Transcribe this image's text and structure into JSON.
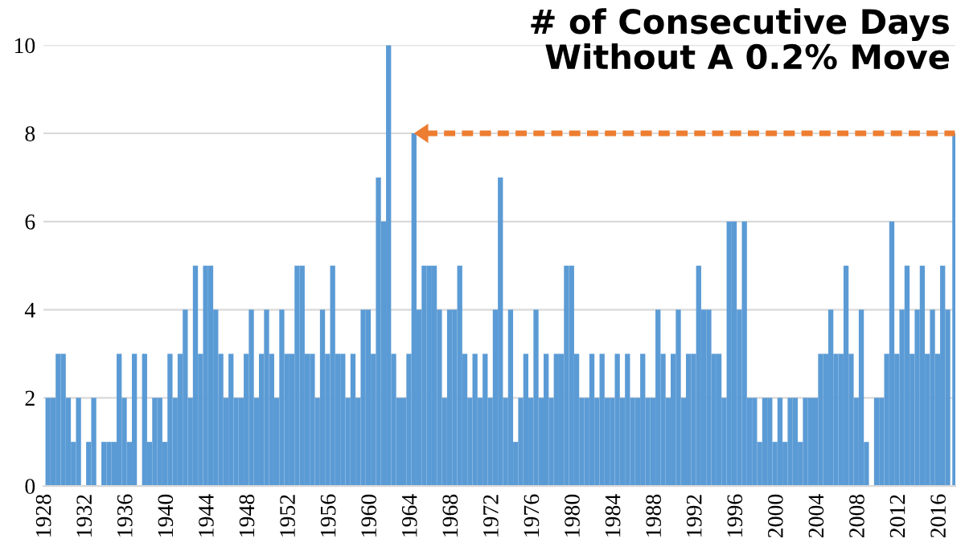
{
  "chart_data": {
    "type": "bar",
    "title": "# of Consecutive Days\nWithout A 0.2% Move",
    "x": [
      1928.0,
      1928.5,
      1929.0,
      1929.5,
      1930.0,
      1930.5,
      1931.0,
      1931.5,
      1932.0,
      1932.5,
      1933.0,
      1933.5,
      1934.0,
      1934.5,
      1935.0,
      1935.5,
      1936.0,
      1936.5,
      1937.0,
      1937.5,
      1938.0,
      1938.5,
      1939.0,
      1939.5,
      1940.0,
      1940.5,
      1941.0,
      1941.5,
      1942.0,
      1942.5,
      1943.0,
      1943.5,
      1944.0,
      1944.5,
      1945.0,
      1945.5,
      1946.0,
      1946.5,
      1947.0,
      1947.5,
      1948.0,
      1948.5,
      1949.0,
      1949.5,
      1950.0,
      1950.5,
      1951.0,
      1951.5,
      1952.0,
      1952.5,
      1953.0,
      1953.5,
      1954.0,
      1954.5,
      1955.0,
      1955.5,
      1956.0,
      1956.5,
      1957.0,
      1957.5,
      1958.0,
      1958.5,
      1959.0,
      1959.5,
      1960.0,
      1960.5,
      1961.0,
      1961.5,
      1962.0,
      1962.5,
      1963.0,
      1963.5,
      1964.0,
      1964.5,
      1965.0,
      1965.5,
      1966.0,
      1966.5,
      1967.0,
      1967.5,
      1968.0,
      1968.5,
      1969.0,
      1969.5,
      1970.0,
      1970.5,
      1971.0,
      1971.5,
      1972.0,
      1972.5,
      1973.0,
      1973.5,
      1974.0,
      1974.5,
      1975.0,
      1975.5,
      1976.0,
      1976.5,
      1977.0,
      1977.5,
      1978.0,
      1978.5,
      1979.0,
      1979.5,
      1980.0,
      1980.5,
      1981.0,
      1981.5,
      1982.0,
      1982.5,
      1983.0,
      1983.5,
      1984.0,
      1984.5,
      1985.0,
      1985.5,
      1986.0,
      1986.5,
      1987.0,
      1987.5,
      1988.0,
      1988.5,
      1989.0,
      1989.5,
      1990.0,
      1990.5,
      1991.0,
      1991.5,
      1992.0,
      1992.5,
      1993.0,
      1993.5,
      1994.0,
      1994.5,
      1995.0,
      1995.5,
      1996.0,
      1996.5,
      1997.0,
      1997.5,
      1998.0,
      1998.5,
      1999.0,
      1999.5,
      2000.0,
      2000.5,
      2001.0,
      2001.5,
      2002.0,
      2002.5,
      2003.0,
      2003.5,
      2004.0,
      2004.5,
      2005.0,
      2005.5,
      2006.0,
      2006.5,
      2007.0,
      2007.5,
      2008.0,
      2008.5,
      2009.0,
      2009.5,
      2010.0,
      2010.5,
      2011.0,
      2011.5,
      2012.0,
      2012.5,
      2013.0,
      2013.5,
      2014.0,
      2014.5,
      2015.0,
      2015.5,
      2016.0,
      2016.5,
      2017.2
    ],
    "values": [
      2,
      2,
      3,
      3,
      2,
      1,
      2,
      0,
      1,
      2,
      0,
      1,
      1,
      1,
      3,
      2,
      1,
      3,
      0,
      3,
      1,
      2,
      2,
      1,
      3,
      2,
      3,
      4,
      2,
      5,
      3,
      5,
      5,
      4,
      3,
      2,
      3,
      2,
      2,
      3,
      4,
      2,
      3,
      4,
      3,
      2,
      4,
      3,
      3,
      5,
      5,
      3,
      3,
      2,
      4,
      3,
      5,
      3,
      3,
      2,
      3,
      2,
      4,
      4,
      3,
      7,
      6,
      10,
      3,
      2,
      2,
      3,
      8,
      4,
      5,
      5,
      5,
      4,
      2,
      4,
      4,
      5,
      3,
      2,
      3,
      2,
      3,
      2,
      4,
      7,
      2,
      4,
      1,
      2,
      3,
      2,
      4,
      2,
      3,
      2,
      3,
      3,
      5,
      5,
      3,
      2,
      2,
      3,
      2,
      3,
      2,
      2,
      3,
      2,
      3,
      2,
      2,
      3,
      2,
      2,
      4,
      3,
      2,
      3,
      4,
      2,
      3,
      3,
      5,
      4,
      4,
      3,
      3,
      2,
      6,
      6,
      4,
      6,
      2,
      2,
      1,
      2,
      2,
      1,
      2,
      1,
      2,
      2,
      1,
      2,
      2,
      2,
      3,
      3,
      4,
      3,
      3,
      5,
      3,
      2,
      4,
      1,
      0,
      2,
      2,
      3,
      6,
      3,
      4,
      5,
      3,
      4,
      5,
      3,
      4,
      3,
      5,
      4,
      8
    ],
    "color": "#5b9bd5",
    "xlim": [
      1927.8,
      2017.5
    ],
    "xticks": [
      1928,
      1932,
      1936,
      1940,
      1944,
      1948,
      1952,
      1956,
      1960,
      1964,
      1968,
      1972,
      1976,
      1980,
      1984,
      1988,
      1992,
      1996,
      2000,
      2004,
      2008,
      2012,
      2016
    ],
    "ylim": [
      0,
      10
    ],
    "yticks": [
      0,
      2,
      4,
      6,
      8,
      10
    ],
    "grid": "y",
    "ref_lines": [
      {
        "axis": "y",
        "value": 8,
        "color": "#ed7d31",
        "line_style": "dashed"
      }
    ]
  }
}
